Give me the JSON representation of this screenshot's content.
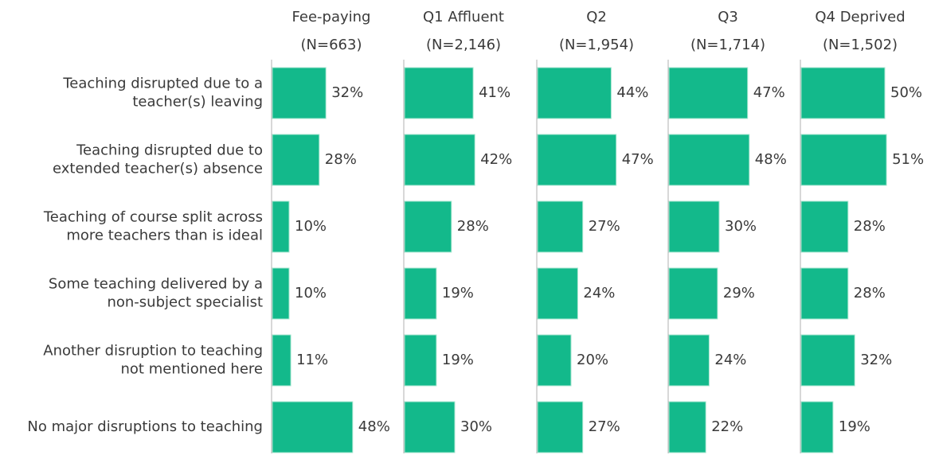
{
  "chart_data": {
    "type": "bar",
    "orientation": "horizontal",
    "categories": [
      [
        "Teaching disrupted due to a",
        "teacher(s) leaving"
      ],
      [
        "Teaching disrupted due to",
        "extended teacher(s) absence"
      ],
      [
        "Teaching of course split across",
        "more teachers than is ideal"
      ],
      [
        "Some teaching delivered by a",
        "non-subject specialist"
      ],
      [
        "Another disruption to teaching",
        "not mentioned here"
      ],
      [
        "No major disruptions to teaching"
      ]
    ],
    "series": [
      {
        "name": "Fee-paying",
        "subtitle": "(N=663)",
        "color": "#13b98b",
        "values": [
          32,
          28,
          10,
          10,
          11,
          48
        ],
        "value_labels": [
          "32%",
          "28%",
          "10%",
          "10%",
          "11%",
          "48%"
        ]
      },
      {
        "name": "Q1 Affluent",
        "subtitle": "(N=2,146)",
        "color": "#13b98b",
        "values": [
          41,
          42,
          28,
          19,
          19,
          30
        ],
        "value_labels": [
          "41%",
          "42%",
          "28%",
          "19%",
          "19%",
          "30%"
        ]
      },
      {
        "name": "Q2",
        "subtitle": "(N=1,954)",
        "color": "#13b98b",
        "values": [
          44,
          47,
          27,
          24,
          20,
          27
        ],
        "value_labels": [
          "44%",
          "47%",
          "27%",
          "24%",
          "20%",
          "27%"
        ]
      },
      {
        "name": "Q3",
        "subtitle": "(N=1,714)",
        "color": "#13b98b",
        "values": [
          47,
          48,
          30,
          29,
          24,
          22
        ],
        "value_labels": [
          "47%",
          "48%",
          "30%",
          "29%",
          "24%",
          "22%"
        ]
      },
      {
        "name": "Q4 Deprived",
        "subtitle": "(N=1,502)",
        "color": "#13b98b",
        "values": [
          50,
          51,
          28,
          28,
          32,
          19
        ],
        "value_labels": [
          "50%",
          "51%",
          "28%",
          "28%",
          "32%",
          "19%"
        ]
      }
    ]
  }
}
